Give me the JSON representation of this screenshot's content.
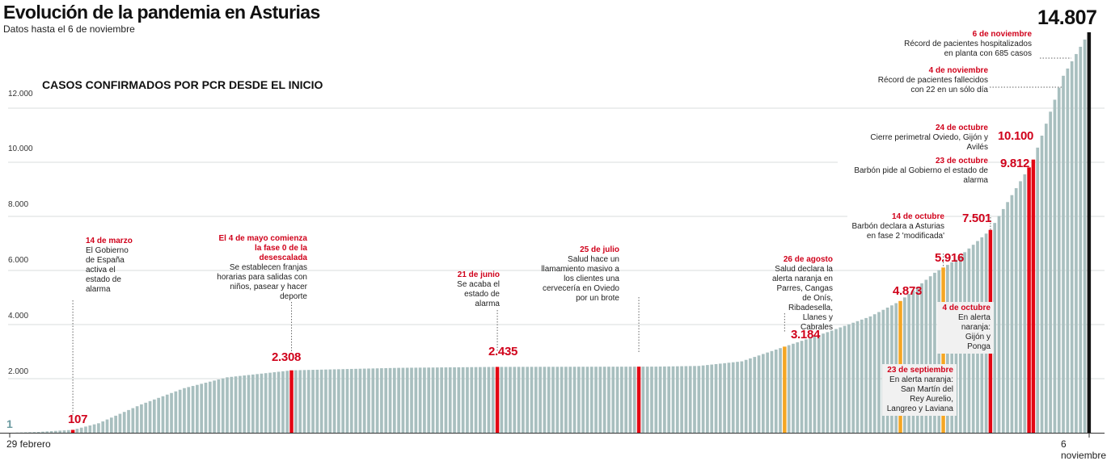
{
  "title": "Evolución de la pandemia en Asturias",
  "subtitle": "Datos hasta el 6 de noviembre",
  "chart_data": {
    "type": "bar",
    "panel_title": "CASOS CONFIRMADOS POR PCR DESDE EL INICIO",
    "ylim": [
      0,
      14807
    ],
    "yticks": [
      "2.000",
      "4.000",
      "6.000",
      "8.000",
      "10.000",
      "12.000"
    ],
    "ytick_values": [
      2000,
      4000,
      6000,
      8000,
      10000,
      12000
    ],
    "x_start_label": "29 febrero",
    "x_end_label": "6 noviembre",
    "grid": true,
    "colors": {
      "bar": "#a8bfbf",
      "highlight_red": "#e30613",
      "highlight_orange": "#f5a623",
      "final": "#111111",
      "text_red": "#d0021b"
    },
    "anchors": [
      {
        "day": 0,
        "value": 1
      },
      {
        "day": 6,
        "value": 30
      },
      {
        "day": 14,
        "value": 107
      },
      {
        "day": 20,
        "value": 350
      },
      {
        "day": 30,
        "value": 1050
      },
      {
        "day": 40,
        "value": 1650
      },
      {
        "day": 50,
        "value": 2050
      },
      {
        "day": 60,
        "value": 2220
      },
      {
        "day": 65,
        "value": 2308
      },
      {
        "day": 90,
        "value": 2400
      },
      {
        "day": 113,
        "value": 2435
      },
      {
        "day": 130,
        "value": 2440
      },
      {
        "day": 150,
        "value": 2445
      },
      {
        "day": 160,
        "value": 2470
      },
      {
        "day": 170,
        "value": 2640
      },
      {
        "day": 180,
        "value": 3184
      },
      {
        "day": 190,
        "value": 3720
      },
      {
        "day": 200,
        "value": 4300
      },
      {
        "day": 207,
        "value": 4873
      },
      {
        "day": 215,
        "value": 5916
      },
      {
        "day": 220,
        "value": 6400
      },
      {
        "day": 228,
        "value": 7501
      },
      {
        "day": 235,
        "value": 9300
      },
      {
        "day": 237,
        "value": 9812
      },
      {
        "day": 238,
        "value": 10100
      },
      {
        "day": 245,
        "value": 13200
      },
      {
        "day": 251,
        "value": 14807
      }
    ],
    "highlights": [
      {
        "day": 14,
        "color": "red"
      },
      {
        "day": 65,
        "color": "red"
      },
      {
        "day": 113,
        "color": "red"
      },
      {
        "day": 146,
        "color": "red"
      },
      {
        "day": 180,
        "color": "orange"
      },
      {
        "day": 207,
        "color": "orange"
      },
      {
        "day": 217,
        "color": "orange"
      },
      {
        "day": 228,
        "color": "red"
      },
      {
        "day": 237,
        "color": "red"
      },
      {
        "day": 238,
        "color": "red"
      },
      {
        "day": 251,
        "color": "final"
      }
    ],
    "value_labels": [
      {
        "text": "1"
      },
      {
        "text": "107"
      },
      {
        "text": "2.308"
      },
      {
        "text": "2.435"
      },
      {
        "text": "3.184"
      },
      {
        "text": "4.873"
      },
      {
        "text": "5.916"
      },
      {
        "text": "7.501"
      },
      {
        "text": "9.812"
      },
      {
        "text": "10.100"
      },
      {
        "text": "14.807"
      }
    ],
    "annotations": [
      {
        "date": "14 de marzo",
        "text": "El Gobierno de España activa el estado de alarma"
      },
      {
        "date": "El 4 de mayo comienza la fase 0 de la desescalada",
        "text": "Se establecen franjas horarias para salidas con niños, pasear y hacer deporte"
      },
      {
        "date": "21 de junio",
        "text": "Se acaba el estado de alarma"
      },
      {
        "date": "25 de julio",
        "text": "Salud hace un llamamiento masivo a los clientes una cervecería en Oviedo por un brote"
      },
      {
        "date": "26 de agosto",
        "text": "Salud declara la alerta naranja en Parres, Cangas de Onís, Ribadesella, Llanes y Cabrales"
      },
      {
        "date": "23 de septiembre",
        "text": "En alerta naranja: San Martín del Rey Aurelio, Langreo y Laviana"
      },
      {
        "date": "4 de octubre",
        "text": "En alerta naranja: Gijón y Ponga"
      },
      {
        "date": "14 de octubre",
        "text": "Barbón declara a Asturias en fase 2 'modificada'"
      },
      {
        "date": "23 de octubre",
        "text": "Barbón pide al Gobierno el estado de alarma"
      },
      {
        "date": "24 de octubre",
        "text": "Cierre perimetral Oviedo, Gijón y Avilés"
      },
      {
        "date": "4 de noviembre",
        "text": "Récord de pacientes fallecidos con 22 en un sólo día"
      },
      {
        "date": "6 de noviembre",
        "text": "Récord de pacientes hospitalizados en planta con 685 casos"
      }
    ]
  }
}
